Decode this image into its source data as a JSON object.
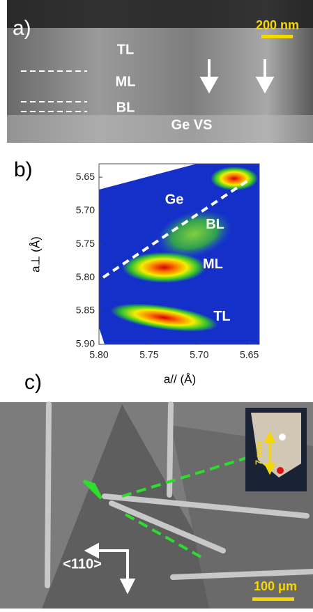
{
  "panel_a": {
    "label": "a)",
    "scale_bar": "200 nm",
    "layers": [
      "TL",
      "ML",
      "BL"
    ],
    "substrate": "Ge VS"
  },
  "chart_data": {
    "type": "heatmap",
    "label": "b)",
    "x_label": "a// (Å)",
    "y_label": "a⊥ (Å)",
    "xlim": [
      5.8,
      5.64
    ],
    "ylim": [
      5.63,
      5.9
    ],
    "xticks": [
      {
        "value": 5.8,
        "label": "5.80"
      },
      5.75,
      {
        "value": 5.7,
        "label": "5.70"
      },
      5.65
    ],
    "yticks": [
      5.65,
      {
        "value": 5.7,
        "label": "5.70"
      },
      5.75,
      {
        "value": 5.8,
        "label": "5.80"
      },
      5.85,
      {
        "value": 5.9,
        "label": "5.90"
      }
    ],
    "peaks": [
      {
        "name": "Ge",
        "x": 5.665,
        "y": 5.652
      },
      {
        "name": "BL",
        "x": 5.705,
        "y": 5.735
      },
      {
        "name": "ML",
        "x": 5.735,
        "y": 5.785
      },
      {
        "name": "TL",
        "x": 5.735,
        "y": 5.86
      }
    ]
  },
  "panel_c": {
    "label": "c)",
    "direction": "<110>",
    "scale_bar": "100 μm",
    "inset_scale": "7 mm"
  }
}
